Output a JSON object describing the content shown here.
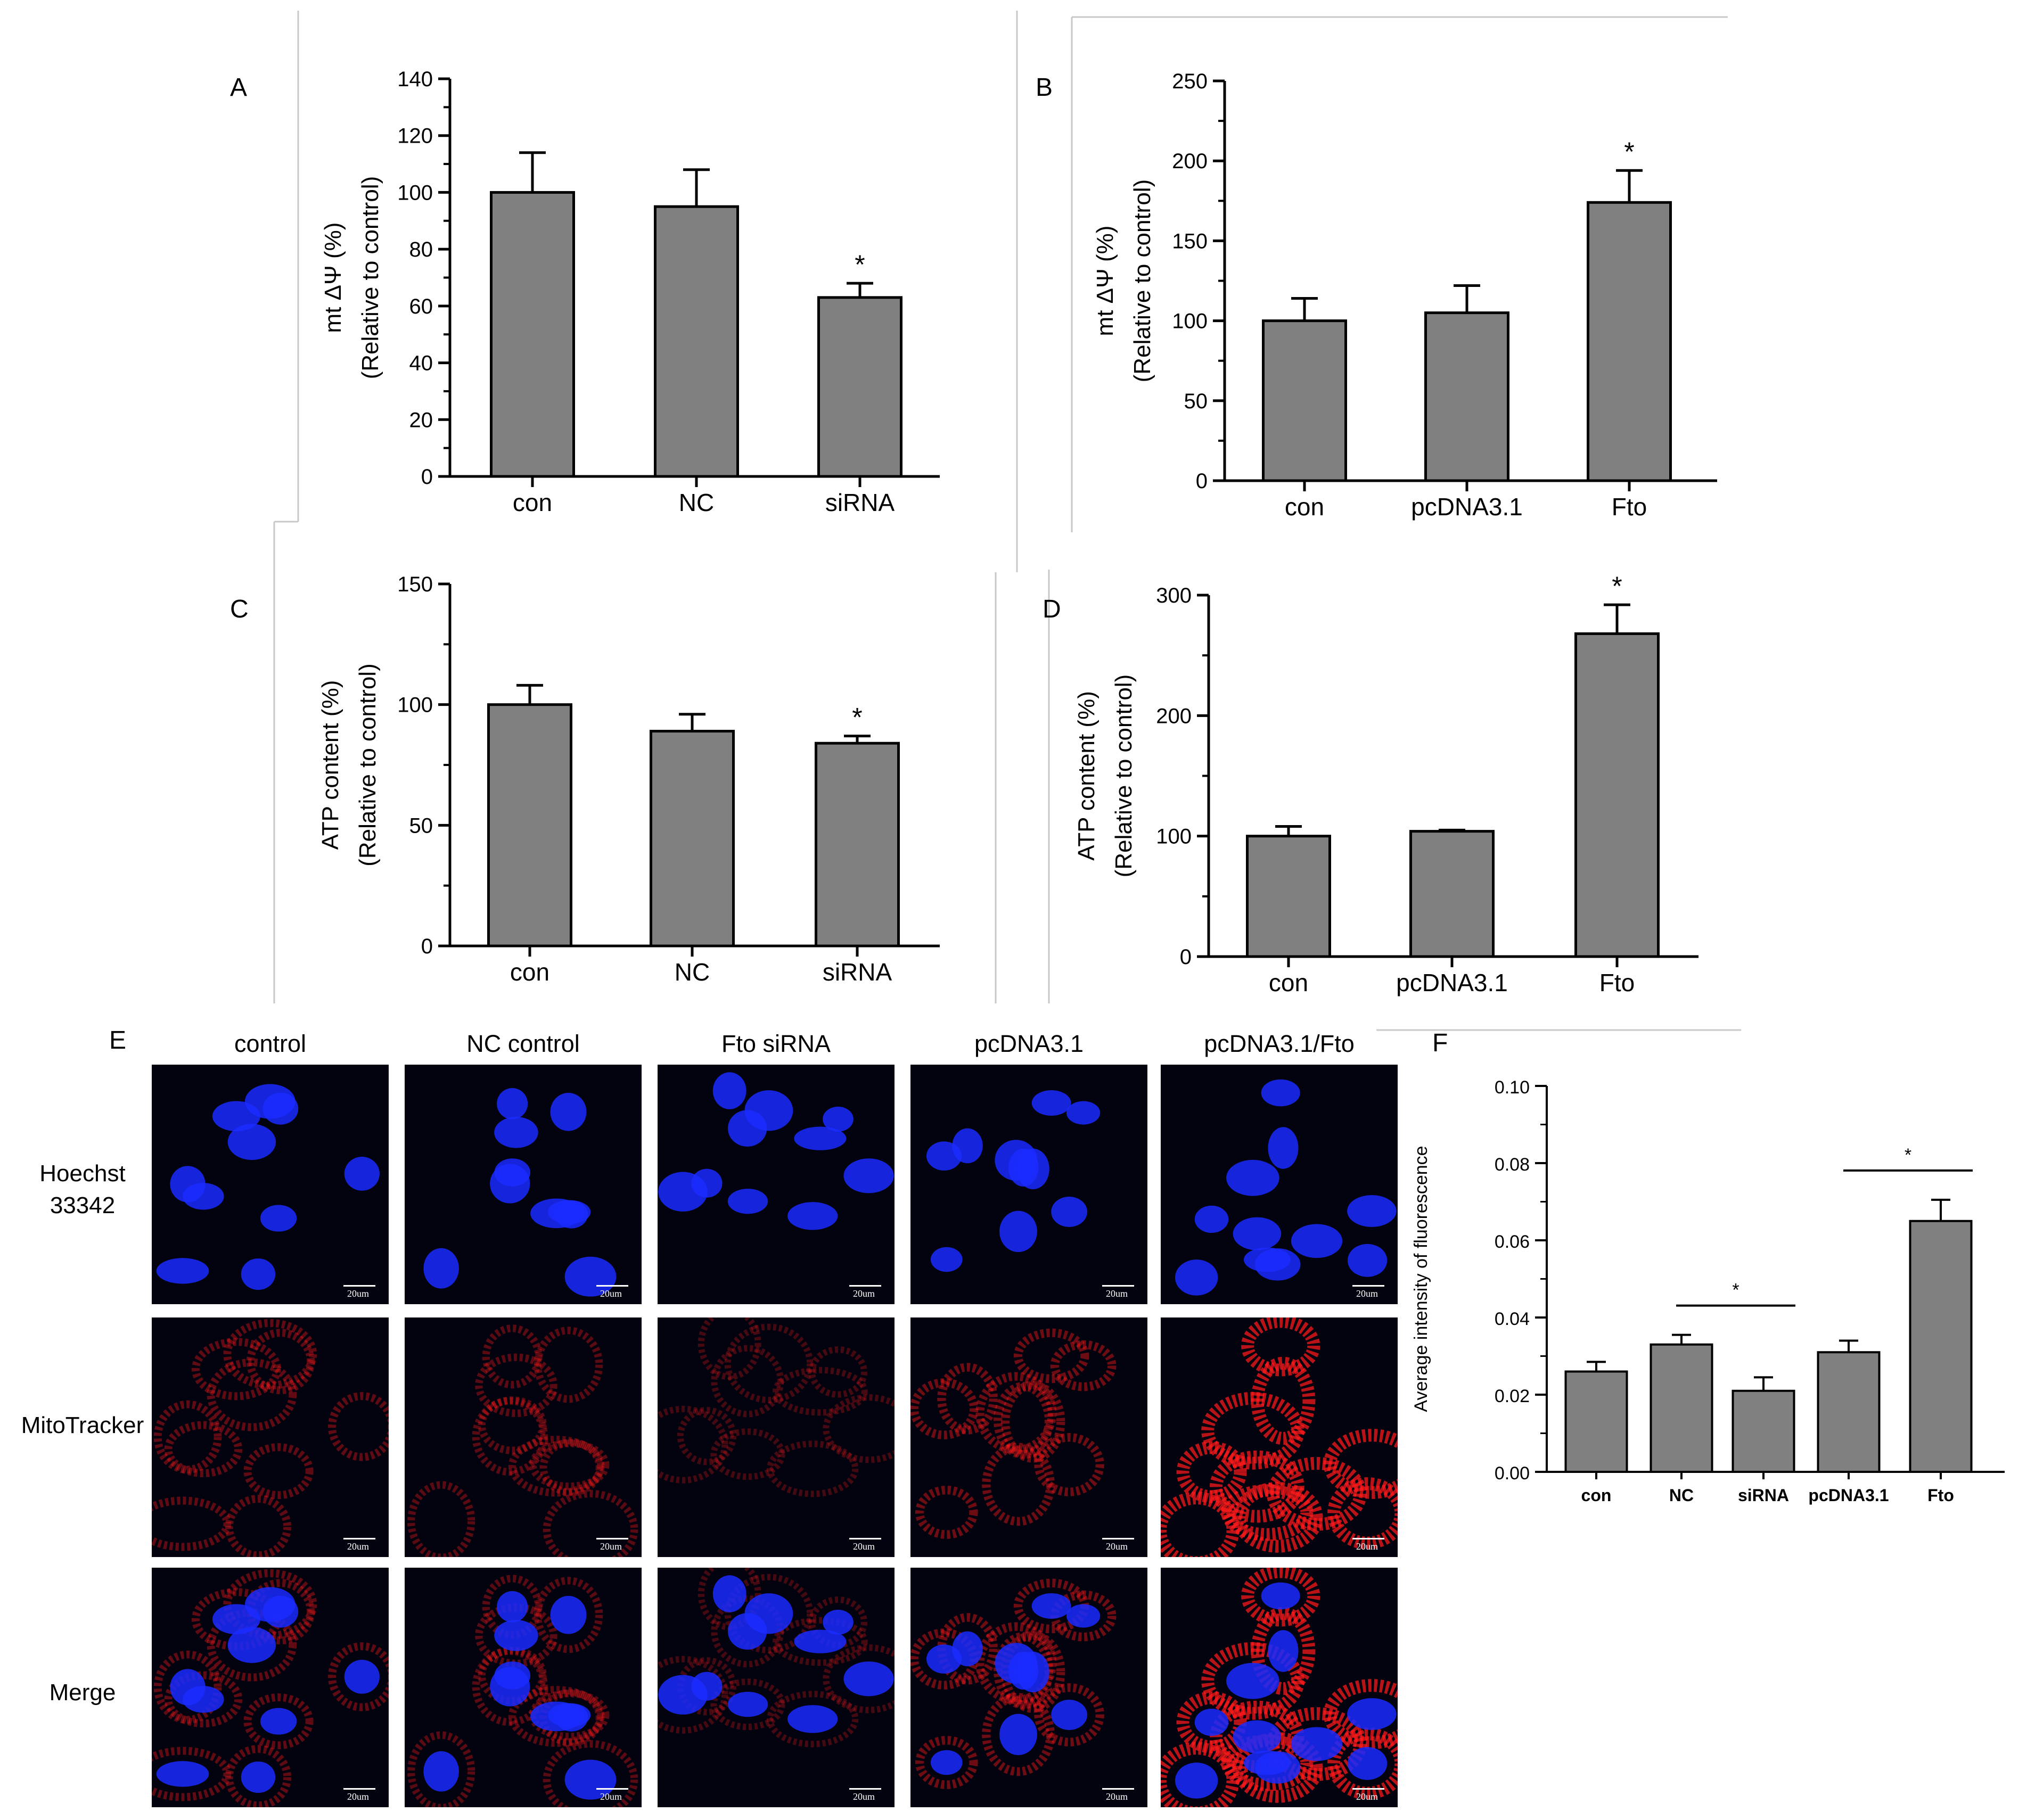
{
  "panels": {
    "A": "A",
    "B": "B",
    "C": "C",
    "D": "D",
    "E": "E",
    "F": "F"
  },
  "chart_data": [
    {
      "id": "A",
      "type": "bar",
      "categories": [
        "con",
        "NC",
        "siRNA"
      ],
      "values": [
        100,
        95,
        63
      ],
      "errors": [
        14,
        13,
        5
      ],
      "significance": [
        "",
        "",
        "*"
      ],
      "ylabel_line1": "mt ΔΨ (%)",
      "ylabel_line2": "(Relative to control)",
      "ylim": [
        0,
        140
      ],
      "yticks": [
        0,
        20,
        40,
        60,
        80,
        100,
        120,
        140
      ]
    },
    {
      "id": "B",
      "type": "bar",
      "categories": [
        "con",
        "pcDNA3.1",
        "Fto"
      ],
      "values": [
        100,
        105,
        174
      ],
      "errors": [
        14,
        17,
        20
      ],
      "significance": [
        "",
        "",
        "*"
      ],
      "ylabel_line1": "mt ΔΨ (%)",
      "ylabel_line2": "(Relative to control)",
      "ylim": [
        0,
        250
      ],
      "yticks": [
        0,
        50,
        100,
        150,
        200,
        250
      ]
    },
    {
      "id": "C",
      "type": "bar",
      "categories": [
        "con",
        "NC",
        "siRNA"
      ],
      "values": [
        100,
        89,
        84
      ],
      "errors": [
        8,
        7,
        3
      ],
      "significance": [
        "",
        "",
        "*"
      ],
      "ylabel_line1": "ATP content (%)",
      "ylabel_line2": "(Relative to control)",
      "ylim": [
        0,
        150
      ],
      "yticks": [
        0,
        50,
        100,
        150
      ]
    },
    {
      "id": "D",
      "type": "bar",
      "categories": [
        "con",
        "pcDNA3.1",
        "Fto"
      ],
      "values": [
        100,
        104,
        268
      ],
      "errors": [
        8,
        1,
        24
      ],
      "significance": [
        "",
        "",
        "*"
      ],
      "ylabel_line1": "ATP content (%)",
      "ylabel_line2": "(Relative to control)",
      "ylim": [
        0,
        300
      ],
      "yticks": [
        0,
        100,
        200,
        300
      ]
    },
    {
      "id": "F",
      "type": "bar",
      "categories": [
        "con",
        "NC",
        "siRNA",
        "pcDNA3.1",
        "Fto"
      ],
      "values": [
        0.026,
        0.033,
        0.021,
        0.031,
        0.065
      ],
      "errors": [
        0.0025,
        0.0025,
        0.0035,
        0.003,
        0.0055
      ],
      "brackets": [
        {
          "from": 1,
          "to": 2,
          "label": "*"
        },
        {
          "from": 3,
          "to": 4,
          "label": "*"
        }
      ],
      "ylabel_line1": "Average intensity of fluorescence",
      "ylabel_line2": "",
      "ylim": [
        0,
        0.1
      ],
      "yticks": [
        "0.00",
        "0.02",
        "0.04",
        "0.06",
        "0.08",
        "0.10"
      ]
    }
  ],
  "images": {
    "columns": [
      "control",
      "NC control",
      "Fto siRNA",
      "pcDNA3.1",
      "pcDNA3.1/Fto"
    ],
    "rows": [
      {
        "line1": "Hoechst",
        "line2": "33342"
      },
      {
        "line1": "MitoTracker",
        "line2": ""
      },
      {
        "line1": "Merge",
        "line2": ""
      }
    ],
    "scale_label": "20um",
    "red_intensity": [
      0.35,
      0.3,
      0.15,
      0.45,
      1.0
    ],
    "colors": {
      "nuclei": "#1a2bff",
      "mito": "#ff1a1a",
      "background": "#03030f"
    }
  }
}
